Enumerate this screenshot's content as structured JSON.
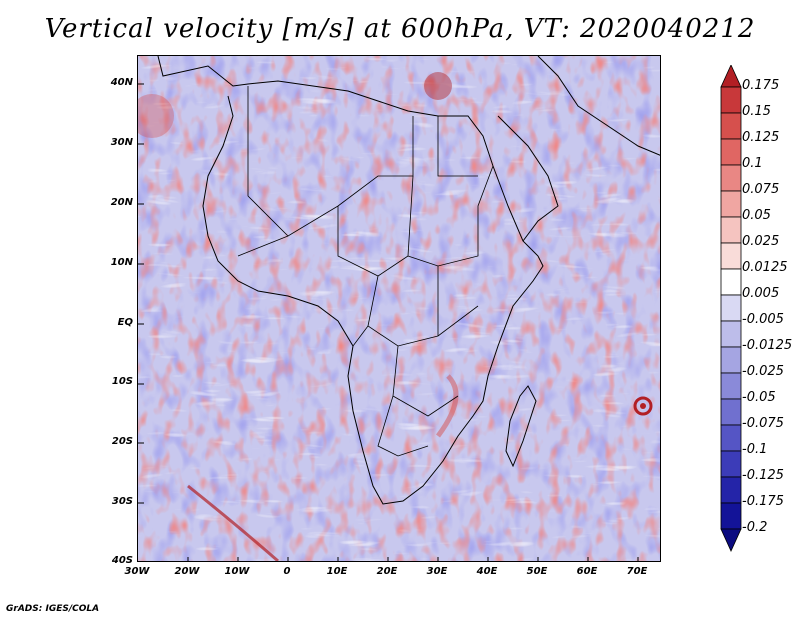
{
  "title": "Vertical velocity [m/s] at 600hPa, VT: 2020040212",
  "footer": "GrADS: IGES/COLA",
  "map": {
    "lat_labels": [
      "40N",
      "30N",
      "20N",
      "10N",
      "EQ",
      "10S",
      "20S",
      "30S",
      "40S"
    ],
    "lon_labels": [
      "30W",
      "20W",
      "10W",
      "0",
      "10E",
      "20E",
      "30E",
      "40E",
      "50E",
      "60E",
      "70E"
    ]
  },
  "colorbar": {
    "colors": [
      "#b21f24",
      "#c8383a",
      "#d6504d",
      "#e06663",
      "#e98784",
      "#f0a6a2",
      "#f5c4c0",
      "#f9dcd9",
      "#ffffff",
      "#d9d9f3",
      "#bdbdea",
      "#a5a5e2",
      "#8a8ad9",
      "#7070cf",
      "#5555c5",
      "#3c3cb8",
      "#2424a8",
      "#131398",
      "#0b0b80"
    ],
    "labels": [
      "0.175",
      "0.15",
      "0.125",
      "0.1",
      "0.075",
      "0.05",
      "0.025",
      "0.0125",
      "0.005",
      "-0.005",
      "-0.0125",
      "-0.025",
      "-0.05",
      "-0.075",
      "-0.1",
      "-0.125",
      "-0.175",
      "-0.2"
    ]
  }
}
